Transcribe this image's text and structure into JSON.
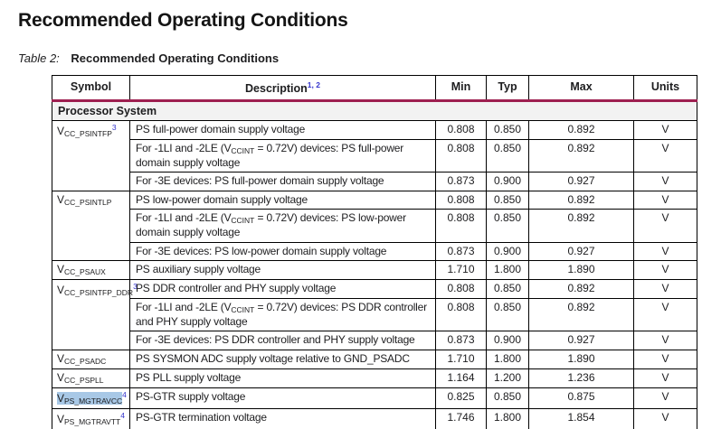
{
  "page": {
    "title": "Recommended Operating Conditions",
    "table_caption": {
      "label": "Table 2:",
      "title": "Recommended Operating Conditions"
    }
  },
  "colors": {
    "accent_rule": "#9e1f50",
    "link_blue": "#3333cc",
    "selection_highlight": "#a8c8e6",
    "section_row_bg": "#f2f2f2"
  },
  "table": {
    "columns": [
      "Symbol",
      "Description",
      "Min",
      "Typ",
      "Max",
      "Units"
    ],
    "description_footnote_refs": "1, 2",
    "section_header": "Processor System",
    "groups": [
      {
        "symbol": "V",
        "symbol_subscript": "CC_PSINTFP",
        "footnote_ref": "3",
        "selected": false,
        "rows": [
          {
            "description": "PS full-power domain supply voltage",
            "min": "0.808",
            "typ": "0.850",
            "max": "0.892",
            "units": "V"
          },
          {
            "description": "For -1LI and -2LE (V~CCINT~ = 0.72V) devices: PS full-power domain supply voltage",
            "min": "0.808",
            "typ": "0.850",
            "max": "0.892",
            "units": "V"
          },
          {
            "description": "For -3E devices: PS full-power domain supply voltage",
            "min": "0.873",
            "typ": "0.900",
            "max": "0.927",
            "units": "V"
          }
        ]
      },
      {
        "symbol": "V",
        "symbol_subscript": "CC_PSINTLP",
        "footnote_ref": "",
        "selected": false,
        "rows": [
          {
            "description": "PS low-power domain supply voltage",
            "min": "0.808",
            "typ": "0.850",
            "max": "0.892",
            "units": "V"
          },
          {
            "description": "For -1LI and -2LE (V~CCINT~ = 0.72V) devices: PS low-power domain supply voltage",
            "min": "0.808",
            "typ": "0.850",
            "max": "0.892",
            "units": "V"
          },
          {
            "description": "For -3E devices: PS low-power domain supply voltage",
            "min": "0.873",
            "typ": "0.900",
            "max": "0.927",
            "units": "V"
          }
        ]
      },
      {
        "symbol": "V",
        "symbol_subscript": "CC_PSAUX",
        "footnote_ref": "",
        "selected": false,
        "rows": [
          {
            "description": "PS auxiliary supply voltage",
            "min": "1.710",
            "typ": "1.800",
            "max": "1.890",
            "units": "V"
          }
        ]
      },
      {
        "symbol": "V",
        "symbol_subscript": "CC_PSINTFP_DDR",
        "footnote_ref": "3",
        "selected": false,
        "rows": [
          {
            "description": "PS DDR controller and PHY supply voltage",
            "min": "0.808",
            "typ": "0.850",
            "max": "0.892",
            "units": "V"
          },
          {
            "description": "For -1LI and -2LE (V~CCINT~ = 0.72V) devices: PS DDR controller and PHY supply voltage",
            "min": "0.808",
            "typ": "0.850",
            "max": "0.892",
            "units": "V"
          },
          {
            "description": "For -3E devices: PS DDR controller and PHY supply voltage",
            "min": "0.873",
            "typ": "0.900",
            "max": "0.927",
            "units": "V"
          }
        ]
      },
      {
        "symbol": "V",
        "symbol_subscript": "CC_PSADC",
        "footnote_ref": "",
        "selected": false,
        "rows": [
          {
            "description": "PS SYSMON ADC supply voltage relative to GND_PSADC",
            "min": "1.710",
            "typ": "1.800",
            "max": "1.890",
            "units": "V"
          }
        ]
      },
      {
        "symbol": "V",
        "symbol_subscript": "CC_PSPLL",
        "footnote_ref": "",
        "selected": false,
        "rows": [
          {
            "description": "PS PLL supply voltage",
            "min": "1.164",
            "typ": "1.200",
            "max": "1.236",
            "units": "V"
          }
        ]
      },
      {
        "symbol": "V",
        "symbol_subscript": "PS_MGTRAVCC",
        "footnote_ref": "4",
        "selected": true,
        "rows": [
          {
            "description": "PS-GTR supply voltage",
            "min": "0.825",
            "typ": "0.850",
            "max": "0.875",
            "units": "V"
          }
        ]
      },
      {
        "symbol": "V",
        "symbol_subscript": "PS_MGTRAVTT",
        "footnote_ref": "4",
        "selected": false,
        "rows": [
          {
            "description": "PS-GTR termination voltage",
            "min": "1.746",
            "typ": "1.800",
            "max": "1.854",
            "units": "V"
          }
        ]
      }
    ]
  }
}
